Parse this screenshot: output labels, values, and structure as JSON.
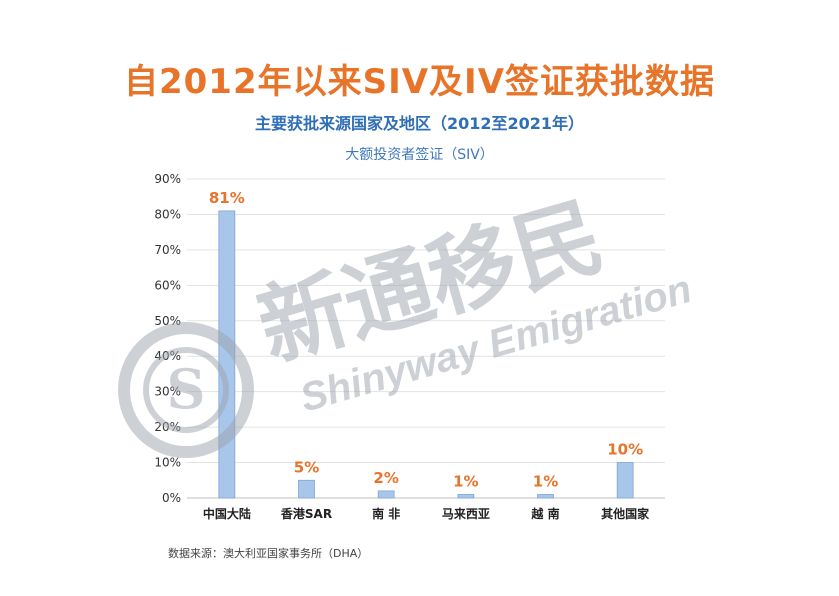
{
  "title": "自2012年以来SIV及IV签证获批数据",
  "subtitle": "主要获批来源国家及地区（2012至2021年）",
  "watermark": {
    "cn": "新通移民",
    "en": "Shinyway Emigration"
  },
  "source_note": "数据来源：澳大利亚国家事务所（DHA）",
  "colors": {
    "title": "#e8742a",
    "subtitle": "#2f6fb5",
    "bar": "#a8c5ea",
    "bar_edge": "#7fa6d6",
    "value_label": "#e8742a"
  },
  "chart_data": {
    "type": "bar",
    "series_title": "大额投资者签证（SIV）",
    "categories": [
      "中国大陆",
      "香港SAR",
      "南 非",
      "马来西亚",
      "越 南",
      "其他国家"
    ],
    "values": [
      81,
      5,
      2,
      1,
      1,
      10
    ],
    "value_labels": [
      "81%",
      "5%",
      "2%",
      "1%",
      "1%",
      "10%"
    ],
    "ylim": [
      0,
      90
    ],
    "yticks": [
      "0%",
      "10%",
      "20%",
      "30%",
      "40%",
      "50%",
      "60%",
      "70%",
      "80%",
      "90%"
    ],
    "grid": true,
    "legend": "none"
  }
}
